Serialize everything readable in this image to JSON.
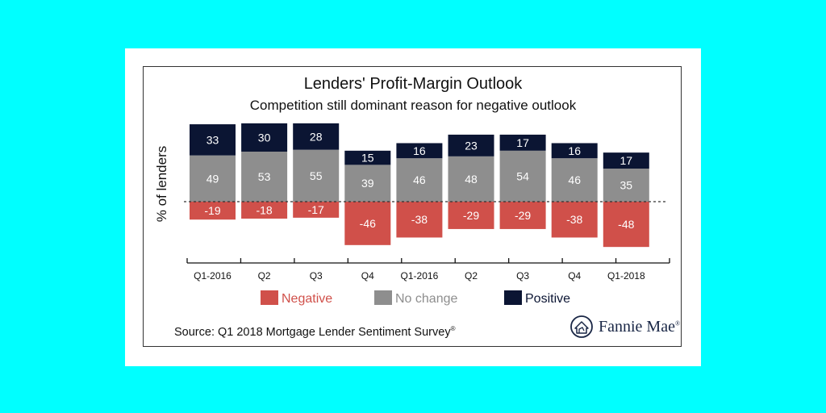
{
  "chart_data": {
    "type": "bar",
    "stacked": true,
    "title": "Lenders' Profit-Margin Outlook",
    "subtitle": "Competition still dominant reason for negative outlook",
    "ylabel": "% of lenders",
    "categories": [
      "Q1-2016",
      "Q2",
      "Q3",
      "Q4",
      "Q1-2016",
      "Q2",
      "Q3",
      "Q4",
      "Q1-2018"
    ],
    "series": [
      {
        "name": "Negative",
        "color": "#d0504a",
        "values": [
          -19,
          -18,
          -17,
          -46,
          -38,
          -29,
          -29,
          -38,
          -48
        ]
      },
      {
        "name": "No change",
        "color": "#8e8e8e",
        "values": [
          49,
          53,
          55,
          39,
          46,
          48,
          54,
          46,
          35
        ]
      },
      {
        "name": "Positive",
        "color": "#0b1533",
        "values": [
          33,
          30,
          28,
          15,
          16,
          23,
          17,
          16,
          17
        ]
      }
    ],
    "legend_position": "bottom",
    "zero_line": "dashed",
    "grid": false
  },
  "source": {
    "text": "Source: Q1 2018 Mortgage Lender Sentiment Survey",
    "mark": "®"
  },
  "logo": {
    "text": "Fannie Mae",
    "mark": "®",
    "icon": "fannie-mae-house-icon"
  }
}
